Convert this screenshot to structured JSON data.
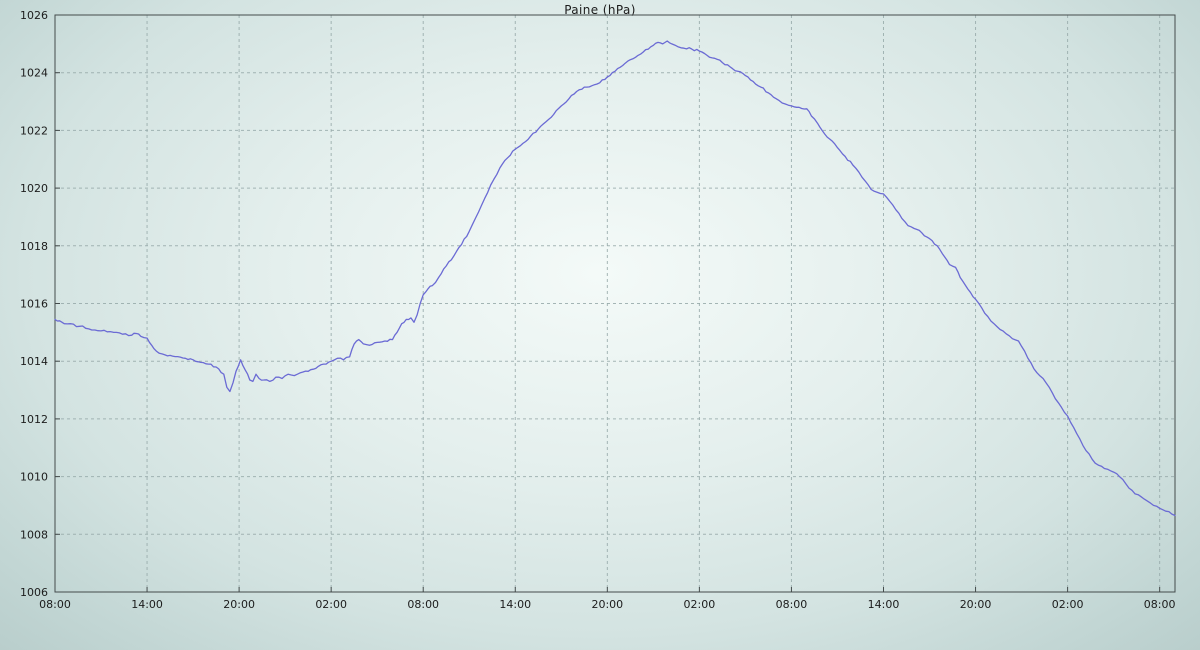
{
  "chart_data": {
    "type": "line",
    "title": "Paine (hPa)",
    "xlabel": "",
    "ylabel": "",
    "legend_position": "none",
    "grid": true,
    "ylim": [
      1006,
      1026
    ],
    "y_ticks": [
      1006,
      1008,
      1010,
      1012,
      1014,
      1016,
      1018,
      1020,
      1022,
      1024,
      1026
    ],
    "xlim": [
      0,
      73
    ],
    "x_ticks": [
      {
        "hour": 0,
        "label": "08:00"
      },
      {
        "hour": 6,
        "label": "14:00"
      },
      {
        "hour": 12,
        "label": "20:00"
      },
      {
        "hour": 18,
        "label": "02:00"
      },
      {
        "hour": 24,
        "label": "08:00"
      },
      {
        "hour": 30,
        "label": "14:00"
      },
      {
        "hour": 36,
        "label": "20:00"
      },
      {
        "hour": 42,
        "label": "02:00"
      },
      {
        "hour": 48,
        "label": "08:00"
      },
      {
        "hour": 54,
        "label": "14:00"
      },
      {
        "hour": 60,
        "label": "20:00"
      },
      {
        "hour": 66,
        "label": "02:00"
      },
      {
        "hour": 72,
        "label": "08:00"
      }
    ],
    "style": {
      "line_color": "#6b6bd4",
      "grid_color": "#97aaaa",
      "axis_color": "#444b4b",
      "text_color": "#1c1c1c"
    },
    "series": [
      {
        "name": "Paine",
        "unit": "hPa",
        "points": [
          [
            0,
            1015.45
          ],
          [
            0.3,
            1015.4
          ],
          [
            0.6,
            1015.3
          ],
          [
            1,
            1015.3
          ],
          [
            1.4,
            1015.2
          ],
          [
            1.8,
            1015.22
          ],
          [
            2.2,
            1015.12
          ],
          [
            2.6,
            1015.08
          ],
          [
            3,
            1015.05
          ],
          [
            3.4,
            1015.02
          ],
          [
            3.8,
            1015.0
          ],
          [
            4.2,
            1014.98
          ],
          [
            4.6,
            1014.95
          ],
          [
            5,
            1014.9
          ],
          [
            5.3,
            1014.96
          ],
          [
            5.6,
            1014.86
          ],
          [
            6,
            1014.8
          ],
          [
            6.3,
            1014.55
          ],
          [
            6.6,
            1014.35
          ],
          [
            7,
            1014.25
          ],
          [
            7.5,
            1014.2
          ],
          [
            8,
            1014.16
          ],
          [
            8.5,
            1014.1
          ],
          [
            9,
            1014.05
          ],
          [
            9.5,
            1013.96
          ],
          [
            10,
            1013.9
          ],
          [
            10.5,
            1013.8
          ],
          [
            11,
            1013.55
          ],
          [
            11.2,
            1013.1
          ],
          [
            11.4,
            1012.95
          ],
          [
            11.6,
            1013.25
          ],
          [
            11.8,
            1013.65
          ],
          [
            12.1,
            1014.05
          ],
          [
            12.4,
            1013.7
          ],
          [
            12.7,
            1013.35
          ],
          [
            12.9,
            1013.3
          ],
          [
            13.1,
            1013.55
          ],
          [
            13.3,
            1013.4
          ],
          [
            13.6,
            1013.35
          ],
          [
            14,
            1013.3
          ],
          [
            14.4,
            1013.45
          ],
          [
            14.8,
            1013.4
          ],
          [
            15.2,
            1013.55
          ],
          [
            15.6,
            1013.5
          ],
          [
            16,
            1013.6
          ],
          [
            16.5,
            1013.65
          ],
          [
            17,
            1013.75
          ],
          [
            17.5,
            1013.9
          ],
          [
            18,
            1014.0
          ],
          [
            18.4,
            1014.1
          ],
          [
            18.8,
            1014.05
          ],
          [
            19.2,
            1014.15
          ],
          [
            19.5,
            1014.6
          ],
          [
            19.8,
            1014.75
          ],
          [
            20.1,
            1014.6
          ],
          [
            20.5,
            1014.55
          ],
          [
            21,
            1014.65
          ],
          [
            21.5,
            1014.7
          ],
          [
            22,
            1014.75
          ],
          [
            22.3,
            1015.0
          ],
          [
            22.6,
            1015.3
          ],
          [
            22.9,
            1015.45
          ],
          [
            23.2,
            1015.5
          ],
          [
            23.4,
            1015.35
          ],
          [
            23.6,
            1015.6
          ],
          [
            23.8,
            1016.0
          ],
          [
            24,
            1016.3
          ],
          [
            24.3,
            1016.5
          ],
          [
            24.6,
            1016.62
          ],
          [
            25,
            1016.9
          ],
          [
            25.5,
            1017.3
          ],
          [
            26,
            1017.65
          ],
          [
            26.5,
            1018.05
          ],
          [
            27,
            1018.5
          ],
          [
            27.4,
            1018.95
          ],
          [
            27.8,
            1019.4
          ],
          [
            28.2,
            1019.85
          ],
          [
            28.6,
            1020.3
          ],
          [
            29,
            1020.7
          ],
          [
            29.5,
            1021.05
          ],
          [
            30,
            1021.35
          ],
          [
            30.5,
            1021.55
          ],
          [
            31,
            1021.8
          ],
          [
            31.5,
            1022.05
          ],
          [
            32,
            1022.3
          ],
          [
            32.5,
            1022.55
          ],
          [
            33,
            1022.85
          ],
          [
            33.5,
            1023.1
          ],
          [
            34,
            1023.35
          ],
          [
            34.5,
            1023.5
          ],
          [
            35,
            1023.55
          ],
          [
            35.5,
            1023.65
          ],
          [
            36,
            1023.85
          ],
          [
            36.5,
            1024.05
          ],
          [
            37,
            1024.25
          ],
          [
            37.5,
            1024.45
          ],
          [
            38,
            1024.6
          ],
          [
            38.5,
            1024.8
          ],
          [
            39,
            1024.95
          ],
          [
            39.3,
            1025.05
          ],
          [
            39.6,
            1025.0
          ],
          [
            39.9,
            1025.1
          ],
          [
            40.2,
            1025.0
          ],
          [
            40.6,
            1024.9
          ],
          [
            41,
            1024.85
          ],
          [
            41.5,
            1024.82
          ],
          [
            42,
            1024.75
          ],
          [
            42.5,
            1024.6
          ],
          [
            43,
            1024.5
          ],
          [
            43.5,
            1024.35
          ],
          [
            44,
            1024.2
          ],
          [
            44.5,
            1024.05
          ],
          [
            45,
            1023.9
          ],
          [
            45.5,
            1023.7
          ],
          [
            46,
            1023.5
          ],
          [
            46.5,
            1023.3
          ],
          [
            47,
            1023.1
          ],
          [
            47.4,
            1022.95
          ],
          [
            48,
            1022.85
          ],
          [
            48.5,
            1022.8
          ],
          [
            49,
            1022.75
          ],
          [
            49.3,
            1022.5
          ],
          [
            49.7,
            1022.25
          ],
          [
            50,
            1022.0
          ],
          [
            50.5,
            1021.7
          ],
          [
            51,
            1021.4
          ],
          [
            51.5,
            1021.1
          ],
          [
            52,
            1020.8
          ],
          [
            52.4,
            1020.55
          ],
          [
            52.8,
            1020.25
          ],
          [
            53.2,
            1019.95
          ],
          [
            53.6,
            1019.85
          ],
          [
            54,
            1019.8
          ],
          [
            54.4,
            1019.55
          ],
          [
            54.8,
            1019.25
          ],
          [
            55.2,
            1018.95
          ],
          [
            55.6,
            1018.7
          ],
          [
            56,
            1018.6
          ],
          [
            56.5,
            1018.45
          ],
          [
            57,
            1018.25
          ],
          [
            57.5,
            1018.0
          ],
          [
            58,
            1017.6
          ],
          [
            58.3,
            1017.35
          ],
          [
            58.7,
            1017.25
          ],
          [
            59,
            1016.9
          ],
          [
            59.5,
            1016.5
          ],
          [
            60,
            1016.15
          ],
          [
            60.4,
            1015.85
          ],
          [
            60.8,
            1015.55
          ],
          [
            61.2,
            1015.3
          ],
          [
            61.6,
            1015.1
          ],
          [
            62,
            1014.95
          ],
          [
            62.4,
            1014.78
          ],
          [
            62.8,
            1014.7
          ],
          [
            63.2,
            1014.35
          ],
          [
            63.6,
            1013.95
          ],
          [
            64,
            1013.6
          ],
          [
            64.4,
            1013.4
          ],
          [
            64.8,
            1013.1
          ],
          [
            65.2,
            1012.7
          ],
          [
            65.6,
            1012.4
          ],
          [
            66,
            1012.1
          ],
          [
            66.4,
            1011.7
          ],
          [
            66.8,
            1011.3
          ],
          [
            67.2,
            1010.9
          ],
          [
            67.6,
            1010.6
          ],
          [
            68,
            1010.4
          ],
          [
            68.4,
            1010.28
          ],
          [
            68.8,
            1010.2
          ],
          [
            69.2,
            1010.1
          ],
          [
            69.6,
            1009.9
          ],
          [
            70,
            1009.6
          ],
          [
            70.4,
            1009.4
          ],
          [
            70.8,
            1009.3
          ],
          [
            71.2,
            1009.15
          ],
          [
            71.6,
            1009.0
          ],
          [
            72,
            1008.9
          ],
          [
            72.4,
            1008.8
          ],
          [
            72.8,
            1008.7
          ],
          [
            73,
            1008.65
          ]
        ]
      }
    ]
  }
}
